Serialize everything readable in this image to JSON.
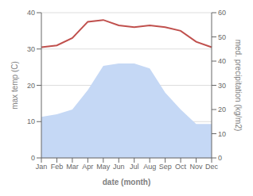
{
  "chart_data": {
    "type": "line",
    "xlabel": "date (month)",
    "ylabel": "max temp (C)",
    "y2label": "med. precipitation (kg/m2)",
    "categories": [
      "Jan",
      "Feb",
      "Mar",
      "Apr",
      "May",
      "Jun",
      "Jul",
      "Aug",
      "Sep",
      "Oct",
      "Nov",
      "Dec"
    ],
    "series": [
      {
        "type": "area",
        "axis": "y2",
        "color": "#c5d8f5",
        "values": [
          17,
          18,
          20,
          28,
          38,
          39,
          39,
          37,
          27,
          20,
          14,
          14
        ]
      },
      {
        "type": "line",
        "color": "#c0504d",
        "values": [
          30.5,
          31.0,
          33.0,
          37.5,
          38.0,
          36.5,
          36.0,
          36.5,
          36.0,
          35.0,
          32.0,
          30.5
        ]
      }
    ],
    "ylim": [
      0,
      40
    ],
    "yticks": [
      0,
      10,
      20,
      30,
      40
    ],
    "y2lim": [
      0,
      60
    ],
    "y2ticks": [
      0,
      10,
      20,
      30,
      40,
      50,
      60
    ],
    "grid": true
  }
}
